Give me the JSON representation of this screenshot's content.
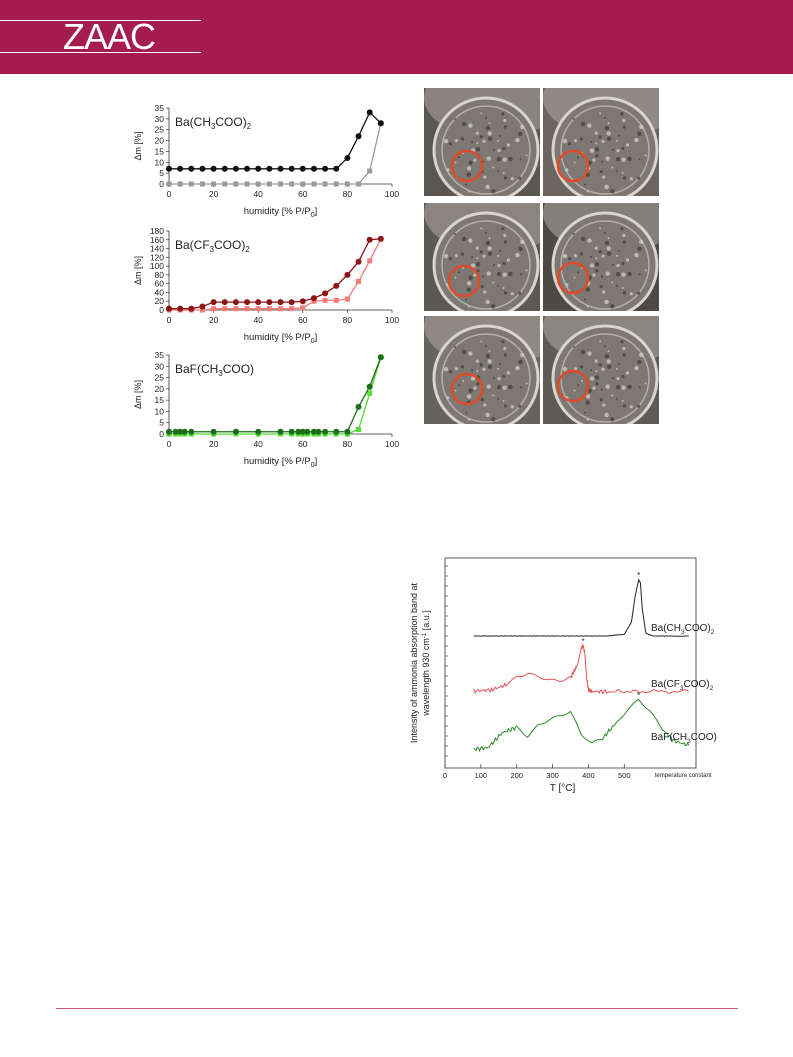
{
  "header": {
    "logo": "ZAAC",
    "color": "#a51c4e"
  },
  "humidity_charts": {
    "xlabel": "humidity [% P/P",
    "xlabel_sub": "0",
    "xlabel_close": "]",
    "ylabel": "Δm [%]",
    "panels": [
      {
        "label_main": "Ba(CH",
        "label_sub": "3",
        "label_rest": "COO)",
        "label_sub2": "2"
      },
      {
        "label_main": "Ba(CF",
        "label_sub": "3",
        "label_rest": "COO)",
        "label_sub2": "2"
      },
      {
        "label_main": "BaF(CH",
        "label_sub": "3",
        "label_rest": "COO)",
        "label_sub2": ""
      }
    ]
  },
  "chart_data": [
    {
      "type": "line",
      "title": "Ba(CH3COO)2",
      "xlabel": "humidity [% P/P0]",
      "ylabel": "Δm [%]",
      "xlim": [
        0,
        100
      ],
      "ylim": [
        0,
        35
      ],
      "xticks": [
        0,
        20,
        40,
        60,
        80,
        100
      ],
      "yticks": [
        0,
        5,
        10,
        15,
        20,
        25,
        30,
        35
      ],
      "series": [
        {
          "color": "#111111",
          "marker": "circle",
          "x": [
            0,
            5,
            10,
            15,
            20,
            25,
            30,
            35,
            40,
            45,
            50,
            55,
            60,
            65,
            70,
            75,
            80,
            85,
            90,
            95
          ],
          "y": [
            7,
            7,
            7,
            7,
            7,
            7,
            7,
            7,
            7,
            7,
            7,
            7,
            7,
            7,
            7,
            7,
            12,
            22,
            33,
            28
          ]
        },
        {
          "color": "#9a9a9a",
          "marker": "square",
          "x": [
            0,
            5,
            10,
            15,
            20,
            25,
            30,
            35,
            40,
            45,
            50,
            55,
            60,
            65,
            70,
            75,
            80,
            85,
            90,
            95
          ],
          "y": [
            0,
            0,
            0,
            0,
            0,
            0,
            0,
            0,
            0,
            0,
            0,
            0,
            0,
            0,
            0,
            0,
            0,
            0,
            6,
            28
          ]
        }
      ]
    },
    {
      "type": "line",
      "title": "Ba(CF3COO)2",
      "xlabel": "humidity [% P/P0]",
      "ylabel": "Δm [%]",
      "xlim": [
        0,
        100
      ],
      "ylim": [
        0,
        180
      ],
      "xticks": [
        0,
        20,
        40,
        60,
        80,
        100
      ],
      "yticks": [
        0,
        20,
        40,
        60,
        80,
        100,
        120,
        140,
        160,
        180
      ],
      "series": [
        {
          "color": "#8b1414",
          "marker": "circle",
          "x": [
            0,
            5,
            10,
            15,
            20,
            25,
            30,
            35,
            40,
            45,
            50,
            55,
            60,
            65,
            70,
            75,
            80,
            85,
            90,
            95
          ],
          "y": [
            3,
            3,
            3,
            8,
            18,
            18,
            18,
            18,
            18,
            18,
            18,
            18,
            20,
            27,
            38,
            55,
            80,
            110,
            160,
            162
          ]
        },
        {
          "color": "#f27b7b",
          "marker": "square",
          "x": [
            0,
            5,
            10,
            15,
            20,
            25,
            30,
            35,
            40,
            45,
            50,
            55,
            60,
            65,
            70,
            75,
            80,
            85,
            90,
            95
          ],
          "y": [
            0,
            0,
            0,
            0,
            3,
            3,
            3,
            3,
            3,
            3,
            3,
            3,
            5,
            20,
            22,
            22,
            25,
            65,
            112,
            162
          ]
        }
      ]
    },
    {
      "type": "line",
      "title": "BaF(CH3COO)",
      "xlabel": "humidity [% P/P0]",
      "ylabel": "Δm [%]",
      "xlim": [
        0,
        100
      ],
      "ylim": [
        0,
        35
      ],
      "xticks": [
        0,
        20,
        40,
        60,
        80,
        100
      ],
      "yticks": [
        0,
        5,
        10,
        15,
        20,
        25,
        30,
        35
      ],
      "series": [
        {
          "color": "#1a6e1a",
          "marker": "circle",
          "x": [
            0,
            3,
            5,
            7,
            10,
            20,
            30,
            40,
            50,
            55,
            58,
            60,
            62,
            65,
            67,
            70,
            75,
            80,
            85,
            90,
            95
          ],
          "y": [
            1,
            1,
            1,
            1,
            1,
            1,
            1,
            1,
            1,
            1,
            1,
            1,
            1,
            1,
            1,
            1,
            1,
            1,
            12,
            21,
            34
          ]
        },
        {
          "color": "#55dd33",
          "marker": "square",
          "x": [
            0,
            3,
            5,
            7,
            10,
            20,
            30,
            40,
            50,
            55,
            58,
            60,
            62,
            65,
            67,
            70,
            75,
            80,
            85,
            90,
            95
          ],
          "y": [
            0,
            0,
            0,
            0,
            0,
            0,
            0,
            0,
            0,
            0,
            0,
            0,
            0,
            0,
            0,
            0,
            0,
            0,
            2,
            18,
            34
          ]
        }
      ]
    },
    {
      "type": "line",
      "xlabel": "T [°C]",
      "ylabel": "Intensity of ammonia absorption band at wavelength 930 cm⁻¹ [a.u.]",
      "xlim": [
        0,
        700
      ],
      "xticks": [
        0,
        100,
        200,
        300,
        400,
        500
      ],
      "annotation": "temperature constant",
      "series": [
        {
          "name": "Ba(CH3COO)2",
          "color": "#222222",
          "x": [
            80,
            150,
            200,
            250,
            300,
            350,
            400,
            450,
            500,
            520,
            530,
            540,
            545,
            550,
            560,
            580,
            620,
            680
          ],
          "y": [
            0,
            0,
            0,
            0,
            0,
            0,
            0,
            0,
            0.03,
            0.25,
            0.7,
            1.0,
            0.95,
            0.5,
            0.05,
            0,
            0,
            0
          ]
        },
        {
          "name": "Ba(CF3COO)2",
          "color": "#e05555",
          "x": [
            80,
            130,
            170,
            200,
            230,
            260,
            290,
            320,
            350,
            370,
            380,
            385,
            390,
            395,
            400,
            410,
            450,
            550,
            680
          ],
          "y": [
            0.02,
            0.05,
            0.15,
            0.35,
            0.42,
            0.35,
            0.25,
            0.22,
            0.3,
            0.6,
            0.95,
            1.0,
            0.85,
            0.3,
            0.05,
            0.01,
            0.01,
            0.01,
            0.01
          ]
        },
        {
          "name": "BaF(CH3COO)",
          "color": "#2a8a2a",
          "x": [
            80,
            120,
            160,
            200,
            230,
            260,
            290,
            320,
            350,
            380,
            410,
            440,
            480,
            510,
            540,
            570,
            600,
            640,
            680
          ],
          "y": [
            0.05,
            0.08,
            0.35,
            0.45,
            0.3,
            0.5,
            0.6,
            0.65,
            0.72,
            0.3,
            0.15,
            0.25,
            0.55,
            0.8,
            0.95,
            0.75,
            0.45,
            0.2,
            0.12
          ]
        }
      ]
    }
  ],
  "tpd_chart": {
    "ylabel_line1": "Intensity of ammonia absorption band at",
    "ylabel_line2_pre": "wavelength 930 cm",
    "ylabel_sup": "-1",
    "ylabel_line2_post": " [a.u.]",
    "xlabel": "T [°C]",
    "annotation": "temperature constant",
    "peak_mark": "*",
    "labels": [
      {
        "main": "Ba(CH",
        "sub": "3",
        "rest": "COO)",
        "sub2": "2"
      },
      {
        "main": "Ba(CF",
        "sub": "3",
        "rest": "COO)",
        "sub2": "2"
      },
      {
        "main": "BaF(CH",
        "sub": "3",
        "rest": "COO)",
        "sub2": ""
      }
    ]
  },
  "photos": {
    "circle_color": "#e04a2a",
    "items": [
      "photo-1",
      "photo-2",
      "photo-3",
      "photo-4",
      "photo-5",
      "photo-6"
    ]
  }
}
